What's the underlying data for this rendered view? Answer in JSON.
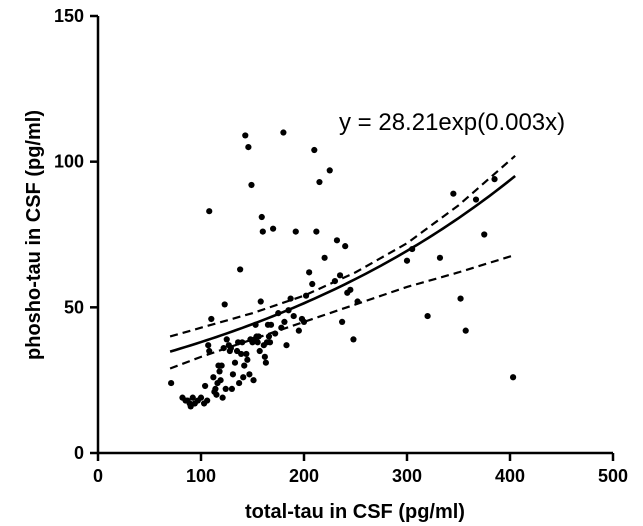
{
  "chart_data": {
    "type": "scatter",
    "xlabel": "total-tau in CSF (pg/ml)",
    "ylabel": "phosho-tau in CSF (pg/ml)",
    "xlim": [
      0,
      500
    ],
    "ylim": [
      0,
      150
    ],
    "x_ticks": [
      0,
      100,
      200,
      300,
      400,
      500
    ],
    "y_ticks": [
      0,
      50,
      100,
      150
    ],
    "x_tick_labels": [
      "0",
      "100",
      "200",
      "300",
      "400",
      "500"
    ],
    "y_tick_labels": [
      "0",
      "50",
      "100",
      "150"
    ],
    "annotation": "y = 28.21exp(0.003x)",
    "fit": {
      "a": 28.21,
      "b": 0.003,
      "x_range": [
        70,
        405
      ]
    },
    "confidence_band": {
      "upper": [
        [
          70,
          40
        ],
        [
          100,
          43
        ],
        [
          150,
          48
        ],
        [
          200,
          54
        ],
        [
          250,
          62
        ],
        [
          300,
          72
        ],
        [
          350,
          85
        ],
        [
          405,
          102
        ]
      ],
      "lower": [
        [
          70,
          29
        ],
        [
          100,
          33
        ],
        [
          150,
          39
        ],
        [
          200,
          45
        ],
        [
          250,
          51
        ],
        [
          300,
          57
        ],
        [
          350,
          62
        ],
        [
          405,
          68
        ]
      ]
    },
    "grid": false,
    "colors": {
      "points": "#000000",
      "lines": "#000000",
      "background": "#ffffff"
    },
    "points": [
      [
        71,
        24
      ],
      [
        82,
        19
      ],
      [
        85,
        18
      ],
      [
        87,
        18
      ],
      [
        89,
        17
      ],
      [
        90,
        16
      ],
      [
        92,
        19
      ],
      [
        94,
        17
      ],
      [
        97,
        18
      ],
      [
        100,
        19
      ],
      [
        103,
        17
      ],
      [
        104,
        23
      ],
      [
        106,
        18
      ],
      [
        107,
        37
      ],
      [
        108,
        35
      ],
      [
        108,
        83
      ],
      [
        110,
        46
      ],
      [
        112,
        26
      ],
      [
        113,
        21
      ],
      [
        114,
        22
      ],
      [
        115,
        20
      ],
      [
        116,
        24
      ],
      [
        117,
        30
      ],
      [
        118,
        28
      ],
      [
        119,
        25
      ],
      [
        120,
        30
      ],
      [
        121,
        19
      ],
      [
        122,
        36
      ],
      [
        123,
        51
      ],
      [
        124,
        22
      ],
      [
        125,
        39
      ],
      [
        127,
        37
      ],
      [
        128,
        35
      ],
      [
        129,
        36
      ],
      [
        130,
        22
      ],
      [
        131,
        27
      ],
      [
        133,
        31
      ],
      [
        135,
        35
      ],
      [
        136,
        38
      ],
      [
        137,
        24
      ],
      [
        138,
        63
      ],
      [
        139,
        34
      ],
      [
        140,
        38
      ],
      [
        141,
        26
      ],
      [
        142,
        30
      ],
      [
        143,
        109
      ],
      [
        144,
        34
      ],
      [
        145,
        32
      ],
      [
        146,
        105
      ],
      [
        147,
        27
      ],
      [
        148,
        39
      ],
      [
        149,
        92
      ],
      [
        150,
        38
      ],
      [
        151,
        25
      ],
      [
        152,
        39
      ],
      [
        153,
        44
      ],
      [
        154,
        40
      ],
      [
        155,
        38
      ],
      [
        156,
        40
      ],
      [
        157,
        35
      ],
      [
        158,
        52
      ],
      [
        159,
        81
      ],
      [
        160,
        76
      ],
      [
        161,
        37
      ],
      [
        162,
        33
      ],
      [
        163,
        31
      ],
      [
        164,
        38
      ],
      [
        165,
        44
      ],
      [
        166,
        40
      ],
      [
        167,
        38
      ],
      [
        168,
        44
      ],
      [
        170,
        77
      ],
      [
        172,
        41
      ],
      [
        175,
        48
      ],
      [
        178,
        43
      ],
      [
        180,
        110
      ],
      [
        181,
        45
      ],
      [
        183,
        37
      ],
      [
        185,
        49
      ],
      [
        187,
        53
      ],
      [
        190,
        47
      ],
      [
        192,
        76
      ],
      [
        195,
        42
      ],
      [
        198,
        46
      ],
      [
        200,
        45
      ],
      [
        202,
        54
      ],
      [
        205,
        62
      ],
      [
        208,
        58
      ],
      [
        210,
        104
      ],
      [
        212,
        76
      ],
      [
        215,
        93
      ],
      [
        220,
        67
      ],
      [
        225,
        97
      ],
      [
        230,
        59
      ],
      [
        232,
        73
      ],
      [
        235,
        61
      ],
      [
        237,
        45
      ],
      [
        240,
        71
      ],
      [
        242,
        55
      ],
      [
        245,
        56
      ],
      [
        248,
        39
      ],
      [
        252,
        52
      ],
      [
        300,
        66
      ],
      [
        305,
        70
      ],
      [
        320,
        47
      ],
      [
        332,
        67
      ],
      [
        345,
        89
      ],
      [
        352,
        53
      ],
      [
        357,
        42
      ],
      [
        367,
        87
      ],
      [
        375,
        75
      ],
      [
        385,
        94
      ],
      [
        403,
        26
      ]
    ]
  }
}
